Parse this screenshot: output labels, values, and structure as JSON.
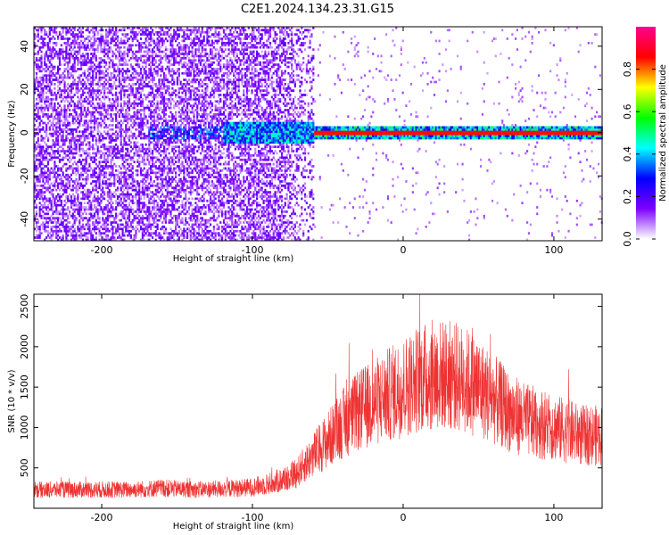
{
  "title": "C2E1.2024.134.23.31.G15",
  "chart_data": [
    {
      "type": "heatmap",
      "xlabel": "Height of straight line (km)",
      "ylabel": "Frequency (Hz)",
      "xlim": [
        -245,
        132
      ],
      "ylim": [
        -50,
        49
      ],
      "xticks": [
        -200,
        -100,
        0,
        100
      ],
      "yticks": [
        -40,
        -20,
        0,
        20,
        40
      ],
      "colorbar": {
        "label": "Normalized spectral amplitude",
        "range": [
          0,
          1
        ],
        "ticks": [
          0.0,
          0.2,
          0.4,
          0.6,
          0.8
        ],
        "tick_labels": [
          "0.0",
          "0.2",
          "0.4",
          "0.6",
          "0.8"
        ],
        "colors": [
          "#ffffff",
          "#7d00ff",
          "#0000ff",
          "#00ffff",
          "#00ff00",
          "#ffff00",
          "#ff0000",
          "#ff0090"
        ]
      },
      "features": {
        "noise_region_km": [
          -245,
          -60
        ],
        "noise_level": 0.12,
        "carrier_freq_hz": 0,
        "carrier_start_km": -60,
        "carrier_amplitude": 0.85
      }
    },
    {
      "type": "line",
      "xlabel": "Height of straight line (km)",
      "ylabel": "SNR (10 * v/v)",
      "xlim": [
        -245,
        132
      ],
      "ylim": [
        0,
        2650
      ],
      "xticks": [
        -200,
        -100,
        0,
        100
      ],
      "yticks": [
        500,
        1000,
        1500,
        2000,
        2500
      ],
      "color": "#ee3333",
      "x": [
        -245,
        -220,
        -200,
        -180,
        -160,
        -140,
        -120,
        -100,
        -90,
        -80,
        -70,
        -60,
        -50,
        -40,
        -30,
        -20,
        -10,
        0,
        10,
        20,
        30,
        40,
        50,
        60,
        70,
        80,
        90,
        100,
        110,
        120,
        132
      ],
      "y": [
        230,
        230,
        230,
        230,
        250,
        230,
        240,
        260,
        300,
        350,
        450,
        650,
        850,
        1050,
        1200,
        1300,
        1400,
        1500,
        1600,
        1650,
        1650,
        1600,
        1500,
        1350,
        1200,
        1100,
        1050,
        1000,
        950,
        900,
        900
      ]
    }
  ]
}
